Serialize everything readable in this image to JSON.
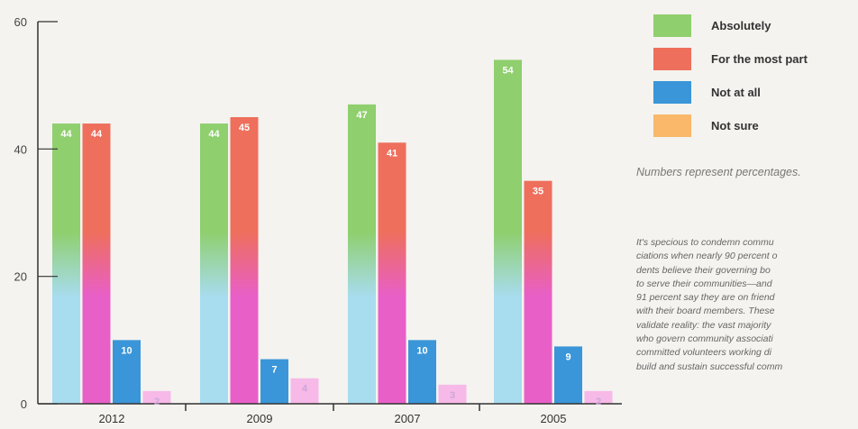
{
  "chart_data": {
    "type": "bar",
    "categories": [
      "2012",
      "2009",
      "2007",
      "2005"
    ],
    "series": [
      {
        "name": "Absolutely",
        "values": [
          44,
          44,
          47,
          54
        ],
        "color": "#8fcf6e"
      },
      {
        "name": "For the most part",
        "values": [
          44,
          45,
          41,
          35
        ],
        "color": "#ee6f5c"
      },
      {
        "name": "Not at all",
        "values": [
          10,
          7,
          10,
          9
        ],
        "color": "#3a96d8"
      },
      {
        "name": "Not sure",
        "values": [
          2,
          4,
          3,
          2
        ],
        "color": "#f9b86a"
      }
    ],
    "yticks": [
      0,
      20,
      40,
      60
    ],
    "ylim": [
      0,
      60
    ],
    "grid": false,
    "legend_position": "right"
  },
  "note": "Numbers represent percentages.",
  "body_lines": [
    "It's specious to condemn commu",
    "ciations when nearly 90 percent o",
    "dents believe their governing bo",
    "to serve their communities—and",
    "91 percent say they are on friend",
    "with their board members. These",
    "validate reality: the vast majority",
    "who govern community associati",
    "committed volunteers working di",
    "build and sustain successful comm"
  ]
}
